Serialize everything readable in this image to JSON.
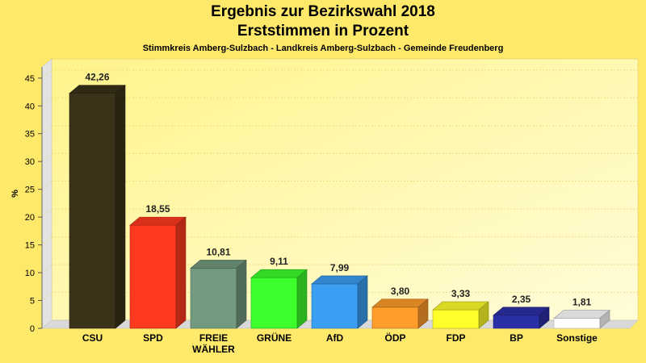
{
  "chart_data": {
    "type": "bar",
    "title": "Ergebnis zur Bezirkswahl 2018",
    "subtitle": "Erststimmen in Prozent",
    "caption": "Stimmkreis Amberg-Sulzbach - Landkreis Amberg-Sulzbach - Gemeinde Freudenberg",
    "ylabel": "%",
    "xlabel": "",
    "ylim": [
      0,
      47
    ],
    "yticks": [
      0,
      5,
      10,
      15,
      20,
      25,
      30,
      35,
      40,
      45
    ],
    "grid": true,
    "categories": [
      [
        "CSU"
      ],
      [
        "SPD"
      ],
      [
        "FREIE",
        "WÄHLER"
      ],
      [
        "GRÜNE"
      ],
      [
        "AfD"
      ],
      [
        "ÖDP"
      ],
      [
        "FDP"
      ],
      [
        "BP"
      ],
      [
        "Sonstige"
      ]
    ],
    "values": [
      42.26,
      18.55,
      10.81,
      9.11,
      7.99,
      3.8,
      3.33,
      2.35,
      1.81
    ],
    "value_labels": [
      "42,26",
      "18,55",
      "10,81",
      "9,11",
      "7,99",
      "3,80",
      "3,33",
      "2,35",
      "1,81"
    ],
    "colors": [
      "#3A3319",
      "#FF3A1F",
      "#729A7E",
      "#3DFF2C",
      "#3A9EF2",
      "#FF9C2A",
      "#FFFF2A",
      "#2B2FA6",
      "#FFFFFF"
    ]
  }
}
